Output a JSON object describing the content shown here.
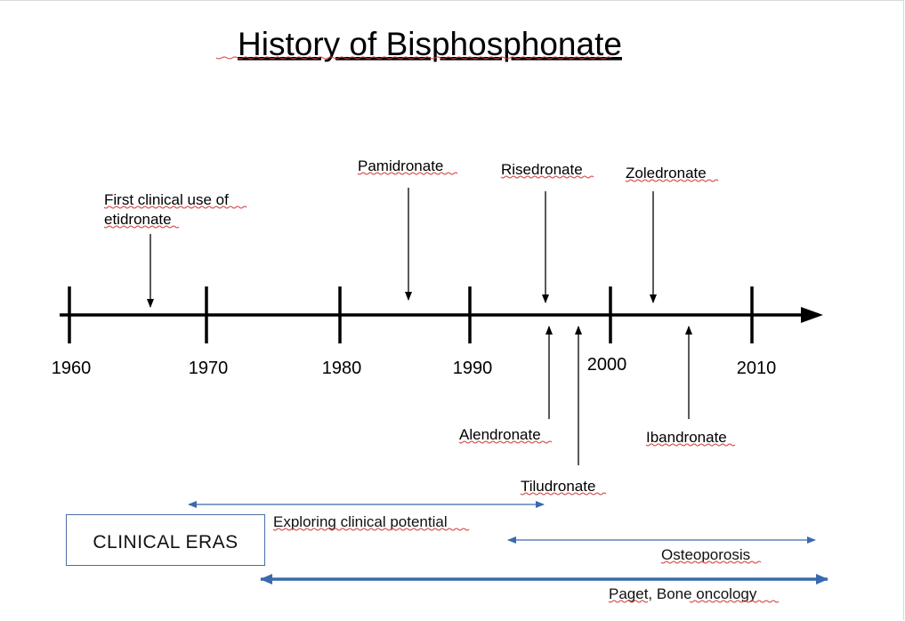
{
  "title": "History of Bisphosphonate",
  "years": [
    "1960",
    "1970",
    "1980",
    "1990",
    "2000",
    "2010"
  ],
  "events_above": [
    {
      "name": "etidronate",
      "lines": [
        "First clinical use of",
        "etidronate"
      ]
    },
    {
      "name": "pamidronate",
      "lines": [
        "Pamidronate"
      ]
    },
    {
      "name": "risedronate",
      "lines": [
        "Risedronate"
      ]
    },
    {
      "name": "zoledronate",
      "lines": [
        "Zoledronate"
      ]
    }
  ],
  "events_below": [
    {
      "name": "alendronate",
      "lines": [
        "Alendronate"
      ]
    },
    {
      "name": "tiludronate",
      "lines": [
        "Tiludronate"
      ]
    },
    {
      "name": "ibandronate",
      "lines": [
        "Ibandronate"
      ]
    }
  ],
  "clinical_eras_label": "CLINICAL ERAS",
  "eras": [
    {
      "name": "exploring",
      "label": "Exploring clinical potential"
    },
    {
      "name": "osteoporosis",
      "label": "Osteoporosis"
    },
    {
      "name": "paget",
      "label": "Paget, Bone oncology"
    }
  ],
  "colors": {
    "axis": "#000000",
    "era_arrow": "#3a6aae",
    "box_border": "#4a6fa5",
    "spell_underline": "#d23a3a"
  }
}
